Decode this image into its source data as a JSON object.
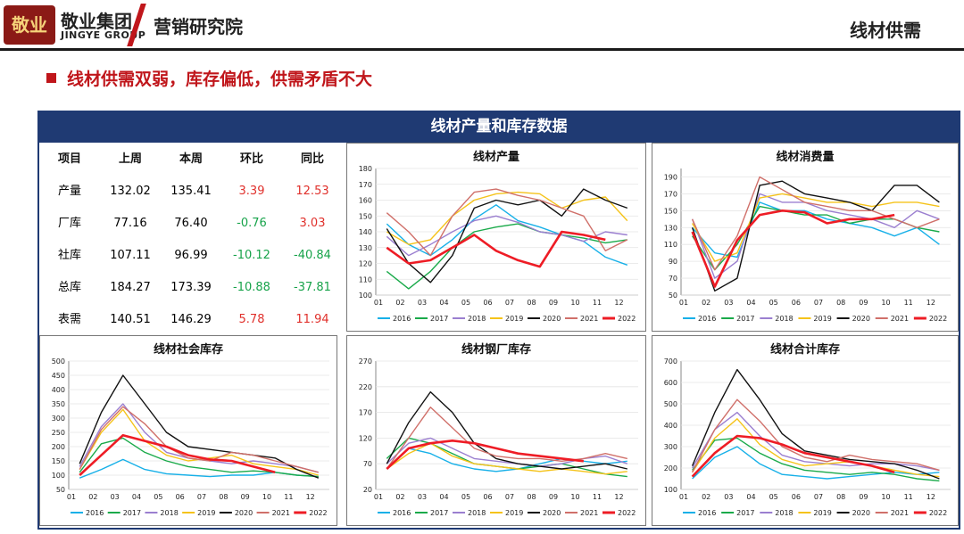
{
  "header": {
    "logo_text": "敬业",
    "brand_cn": "敬业集团",
    "brand_en": "JINGYE GROUP",
    "department": "营销研究院",
    "page_label": "线材供需"
  },
  "subtitle": "线材供需双弱，库存偏低，供需矛盾不大",
  "panel_title": "线材产量和库存数据",
  "table": {
    "headers": [
      "项目",
      "上周",
      "本周",
      "环比",
      "同比"
    ],
    "rows": [
      {
        "item": "产量",
        "last": "132.02",
        "this": "135.41",
        "wow": "3.39",
        "yoy": "12.53"
      },
      {
        "item": "厂库",
        "last": "77.16",
        "this": "76.40",
        "wow": "-0.76",
        "yoy": "3.03"
      },
      {
        "item": "社库",
        "last": "107.11",
        "this": "96.99",
        "wow": "-10.12",
        "yoy": "-40.84"
      },
      {
        "item": "总库",
        "last": "184.27",
        "this": "173.39",
        "wow": "-10.88",
        "yoy": "-37.81"
      },
      {
        "item": "表需",
        "last": "140.51",
        "this": "146.29",
        "wow": "5.78",
        "yoy": "11.94"
      }
    ]
  },
  "series_colors": {
    "2016": "#17b0e8",
    "2017": "#1aaa4a",
    "2018": "#9b7fd0",
    "2019": "#f5c31a",
    "2020": "#111111",
    "2021": "#d0706a",
    "2022": "#ee1c25"
  },
  "chart_data": [
    {
      "id": "production",
      "type": "line",
      "title": "线材产量",
      "x": [
        "01",
        "02",
        "03",
        "04",
        "05",
        "06",
        "07",
        "08",
        "09",
        "10",
        "11",
        "12"
      ],
      "ylim": [
        100,
        180
      ],
      "yticks": [
        100,
        110,
        120,
        130,
        140,
        150,
        160,
        170,
        180
      ],
      "series": [
        {
          "name": "2016",
          "values": [
            145,
            132,
            125,
            135,
            148,
            157,
            147,
            143,
            138,
            134,
            124,
            119
          ]
        },
        {
          "name": "2017",
          "values": [
            115,
            104,
            115,
            130,
            140,
            143,
            145,
            140,
            138,
            136,
            133,
            135
          ]
        },
        {
          "name": "2018",
          "values": [
            137,
            125,
            132,
            140,
            147,
            150,
            146,
            140,
            138,
            134,
            140,
            138
          ]
        },
        {
          "name": "2019",
          "values": [
            140,
            132,
            135,
            150,
            160,
            164,
            165,
            164,
            155,
            160,
            162,
            147
          ]
        },
        {
          "name": "2020",
          "values": [
            142,
            120,
            108,
            125,
            155,
            160,
            157,
            160,
            150,
            167,
            160,
            155
          ]
        },
        {
          "name": "2021",
          "values": [
            152,
            140,
            125,
            150,
            165,
            167,
            163,
            160,
            155,
            150,
            128,
            135
          ]
        },
        {
          "name": "2022",
          "values": [
            130,
            120,
            122,
            130,
            138,
            128,
            122,
            118,
            140,
            138,
            135,
            null
          ]
        }
      ]
    },
    {
      "id": "consumption",
      "type": "line",
      "title": "线材消费量",
      "x": [
        "01",
        "02",
        "03",
        "04",
        "05",
        "06",
        "07",
        "08",
        "09",
        "10",
        "11",
        "12"
      ],
      "ylim": [
        50,
        200
      ],
      "yticks": [
        50,
        70,
        90,
        110,
        130,
        150,
        170,
        190
      ],
      "series": [
        {
          "name": "2016",
          "values": [
            130,
            100,
            95,
            160,
            150,
            150,
            140,
            135,
            130,
            120,
            130,
            110
          ]
        },
        {
          "name": "2017",
          "values": [
            120,
            80,
            110,
            155,
            150,
            145,
            145,
            135,
            140,
            140,
            130,
            125
          ]
        },
        {
          "name": "2018",
          "values": [
            140,
            70,
            90,
            170,
            160,
            160,
            150,
            145,
            140,
            130,
            150,
            140
          ]
        },
        {
          "name": "2019",
          "values": [
            135,
            90,
            100,
            165,
            170,
            165,
            160,
            160,
            155,
            160,
            160,
            155
          ]
        },
        {
          "name": "2020",
          "values": [
            130,
            55,
            70,
            180,
            185,
            170,
            165,
            160,
            150,
            180,
            180,
            160
          ]
        },
        {
          "name": "2021",
          "values": [
            140,
            80,
            120,
            190,
            175,
            160,
            155,
            150,
            150,
            140,
            130,
            140
          ]
        },
        {
          "name": "2022",
          "values": [
            125,
            60,
            115,
            145,
            150,
            148,
            135,
            140,
            140,
            145,
            null,
            null
          ]
        }
      ]
    },
    {
      "id": "social_stock",
      "type": "line",
      "title": "线材社会库存",
      "x": [
        "01",
        "02",
        "03",
        "04",
        "05",
        "06",
        "07",
        "08",
        "09",
        "10",
        "11",
        "12"
      ],
      "ylim": [
        50,
        500
      ],
      "yticks": [
        50,
        100,
        150,
        200,
        250,
        300,
        350,
        400,
        450,
        500
      ],
      "series": [
        {
          "name": "2016",
          "values": [
            90,
            120,
            155,
            120,
            105,
            100,
            95,
            100,
            100,
            110,
            100,
            95
          ]
        },
        {
          "name": "2017",
          "values": [
            110,
            210,
            230,
            180,
            150,
            130,
            120,
            110,
            115,
            110,
            100,
            95
          ]
        },
        {
          "name": "2018",
          "values": [
            130,
            270,
            350,
            250,
            180,
            160,
            150,
            140,
            150,
            140,
            130,
            110
          ]
        },
        {
          "name": "2019",
          "values": [
            120,
            250,
            330,
            220,
            170,
            150,
            160,
            170,
            140,
            130,
            120,
            100
          ]
        },
        {
          "name": "2020",
          "values": [
            140,
            320,
            450,
            350,
            250,
            200,
            190,
            180,
            170,
            160,
            120,
            90
          ]
        },
        {
          "name": "2021",
          "values": [
            120,
            260,
            340,
            280,
            200,
            160,
            150,
            180,
            170,
            150,
            130,
            110
          ]
        },
        {
          "name": "2022",
          "values": [
            100,
            170,
            240,
            220,
            200,
            170,
            155,
            150,
            130,
            110,
            null,
            null
          ]
        }
      ]
    },
    {
      "id": "mill_stock",
      "type": "line",
      "title": "线材钢厂库存",
      "x": [
        "01",
        "02",
        "03",
        "04",
        "05",
        "06",
        "07",
        "08",
        "09",
        "10",
        "11",
        "12"
      ],
      "ylim": [
        20,
        270
      ],
      "yticks": [
        20,
        70,
        120,
        170,
        220,
        270
      ],
      "series": [
        {
          "name": "2016",
          "values": [
            60,
            100,
            90,
            70,
            60,
            55,
            60,
            70,
            80,
            75,
            70,
            75
          ]
        },
        {
          "name": "2017",
          "values": [
            80,
            120,
            110,
            90,
            70,
            65,
            60,
            65,
            70,
            60,
            50,
            45
          ]
        },
        {
          "name": "2018",
          "values": [
            70,
            110,
            120,
            100,
            80,
            75,
            70,
            65,
            70,
            80,
            85,
            70
          ]
        },
        {
          "name": "2019",
          "values": [
            60,
            90,
            110,
            85,
            70,
            65,
            60,
            55,
            60,
            55,
            50,
            55
          ]
        },
        {
          "name": "2020",
          "values": [
            70,
            150,
            210,
            170,
            110,
            80,
            70,
            65,
            60,
            65,
            70,
            60
          ]
        },
        {
          "name": "2021",
          "values": [
            60,
            120,
            180,
            140,
            100,
            85,
            80,
            80,
            75,
            80,
            90,
            80
          ]
        },
        {
          "name": "2022",
          "values": [
            60,
            100,
            110,
            115,
            110,
            100,
            90,
            85,
            80,
            75,
            null,
            null
          ]
        }
      ]
    },
    {
      "id": "total_stock",
      "type": "line",
      "title": "线材合计库存",
      "x": [
        "01",
        "02",
        "03",
        "04",
        "05",
        "06",
        "07",
        "08",
        "09",
        "10",
        "11",
        "12"
      ],
      "ylim": [
        100,
        700
      ],
      "yticks": [
        100,
        200,
        300,
        400,
        500,
        600,
        700
      ],
      "series": [
        {
          "name": "2016",
          "values": [
            150,
            250,
            300,
            220,
            170,
            160,
            150,
            160,
            170,
            180,
            170,
            180
          ]
        },
        {
          "name": "2017",
          "values": [
            190,
            330,
            340,
            270,
            220,
            190,
            180,
            170,
            180,
            170,
            150,
            140
          ]
        },
        {
          "name": "2018",
          "values": [
            200,
            380,
            460,
            350,
            260,
            230,
            220,
            210,
            220,
            220,
            210,
            190
          ]
        },
        {
          "name": "2019",
          "values": [
            180,
            340,
            430,
            310,
            240,
            210,
            220,
            230,
            210,
            190,
            170,
            160
          ]
        },
        {
          "name": "2020",
          "values": [
            210,
            460,
            660,
            520,
            360,
            280,
            260,
            240,
            230,
            220,
            190,
            150
          ]
        },
        {
          "name": "2021",
          "values": [
            180,
            380,
            520,
            420,
            300,
            250,
            230,
            260,
            240,
            230,
            220,
            190
          ]
        },
        {
          "name": "2022",
          "values": [
            160,
            270,
            350,
            340,
            310,
            270,
            250,
            230,
            210,
            180,
            null,
            null
          ]
        }
      ]
    }
  ]
}
